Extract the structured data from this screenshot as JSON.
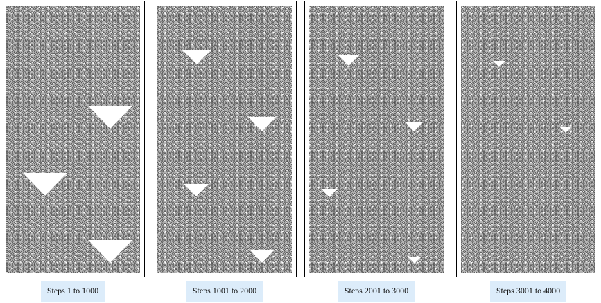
{
  "panels": [
    {
      "caption": "Steps 1 to 1000"
    },
    {
      "caption": "Steps 1001 to 2000"
    },
    {
      "caption": "Steps 2001 to 3000"
    },
    {
      "caption": "Steps 3001 to 4000"
    }
  ]
}
